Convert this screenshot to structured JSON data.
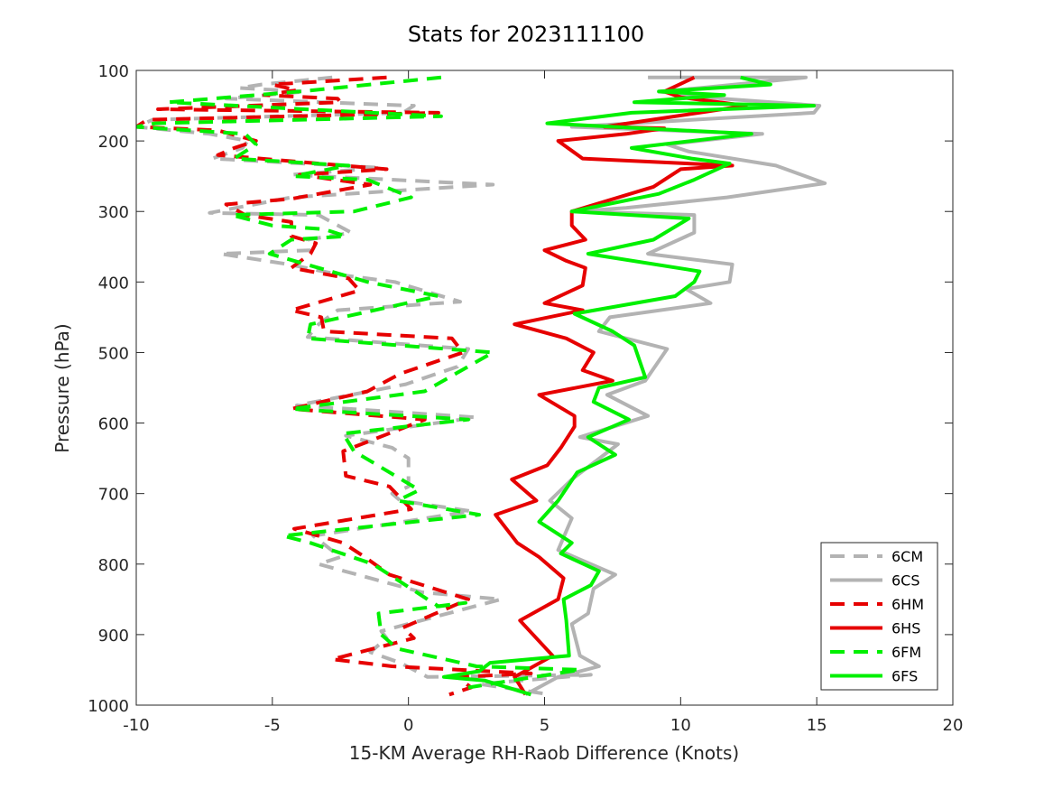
{
  "chart_data": {
    "type": "line",
    "title": "Stats for 2023111100",
    "xlabel": "15-KM Average RH-Raob Difference (Knots)",
    "ylabel": "Pressure (hPa)",
    "xlim": [
      -10,
      20
    ],
    "ylim": [
      100,
      1000
    ],
    "y_reversed": true,
    "x_ticks": [
      -10,
      -5,
      0,
      5,
      10,
      15,
      20
    ],
    "y_ticks": [
      100,
      200,
      300,
      400,
      500,
      600,
      700,
      800,
      900,
      1000
    ],
    "x_tick_labels": [
      "-10",
      "-5",
      "0",
      "5",
      "10",
      "15",
      "20"
    ],
    "y_tick_labels": [
      "100",
      "200",
      "300",
      "400",
      "500",
      "600",
      "700",
      "800",
      "900",
      "1000"
    ],
    "grid": false,
    "legend_position": "bottom-right",
    "series": [
      {
        "name": "6CM",
        "color": "#b3b3b3",
        "dash": "dashed",
        "points": [
          [
            -2.8,
            110
          ],
          [
            -5.4,
            120
          ],
          [
            -6.2,
            125
          ],
          [
            -3.8,
            130
          ],
          [
            -6.7,
            140
          ],
          [
            0.2,
            150
          ],
          [
            -0.2,
            160
          ],
          [
            -9.4,
            170
          ],
          [
            -10,
            180
          ],
          [
            -7.3,
            190
          ],
          [
            -5.9,
            200
          ],
          [
            -6.1,
            210
          ],
          [
            -7.2,
            225
          ],
          [
            -1,
            238
          ],
          [
            -4.3,
            248
          ],
          [
            3.1,
            262
          ],
          [
            -4.3,
            280
          ],
          [
            -7.3,
            302
          ],
          [
            -3.3,
            305
          ],
          [
            -2.1,
            330
          ],
          [
            -3.7,
            340
          ],
          [
            -3.6,
            355
          ],
          [
            -6.9,
            360
          ],
          [
            -4.4,
            375
          ],
          [
            -2.5,
            390
          ],
          [
            -0.5,
            400
          ],
          [
            1.9,
            428
          ],
          [
            -2.6,
            440
          ],
          [
            -3.3,
            460
          ],
          [
            -3.7,
            478
          ],
          [
            2.2,
            495
          ],
          [
            1.8,
            520
          ],
          [
            -0.1,
            545
          ],
          [
            -4.1,
            575
          ],
          [
            2.5,
            592
          ],
          [
            -2.3,
            618
          ],
          [
            -0.6,
            635
          ],
          [
            0,
            650
          ],
          [
            0,
            690
          ],
          [
            -0.6,
            700
          ],
          [
            -0.3,
            710
          ],
          [
            2.3,
            725
          ],
          [
            -3.5,
            760
          ],
          [
            -2.5,
            790
          ],
          [
            -3.3,
            800
          ],
          [
            0.5,
            840
          ],
          [
            3.4,
            850
          ],
          [
            -1,
            895
          ],
          [
            -0.8,
            905
          ],
          [
            -1.4,
            925
          ],
          [
            -0.3,
            940
          ],
          [
            0.7,
            960
          ],
          [
            6.7,
            957
          ],
          [
            2.6,
            970
          ],
          [
            4,
            978
          ],
          [
            5.2,
            985
          ]
        ]
      },
      {
        "name": "6CS",
        "color": "#b3b3b3",
        "dash": "solid",
        "points": [
          [
            8.8,
            110
          ],
          [
            14.6,
            110
          ],
          [
            10.7,
            125
          ],
          [
            9.2,
            130
          ],
          [
            11.5,
            140
          ],
          [
            15.1,
            150
          ],
          [
            14.9,
            160
          ],
          [
            6,
            180
          ],
          [
            13,
            190
          ],
          [
            9.5,
            205
          ],
          [
            10.3,
            215
          ],
          [
            13.5,
            235
          ],
          [
            15.3,
            260
          ],
          [
            11.7,
            280
          ],
          [
            8,
            295
          ],
          [
            6.1,
            300
          ],
          [
            10.5,
            305
          ],
          [
            10.5,
            330
          ],
          [
            8.8,
            360
          ],
          [
            11.9,
            375
          ],
          [
            11.8,
            400
          ],
          [
            10.2,
            410
          ],
          [
            11.1,
            430
          ],
          [
            7.4,
            450
          ],
          [
            7,
            470
          ],
          [
            9.5,
            495
          ],
          [
            8.7,
            540
          ],
          [
            7.3,
            560
          ],
          [
            8.8,
            590
          ],
          [
            6.3,
            620
          ],
          [
            7.7,
            630
          ],
          [
            6,
            680
          ],
          [
            5.2,
            710
          ],
          [
            6,
            735
          ],
          [
            5.5,
            780
          ],
          [
            7.6,
            815
          ],
          [
            6.8,
            835
          ],
          [
            6.6,
            870
          ],
          [
            6,
            885
          ],
          [
            6.3,
            930
          ],
          [
            7,
            945
          ],
          [
            5.5,
            960
          ],
          [
            4.3,
            985
          ]
        ]
      },
      {
        "name": "6HM",
        "color": "#e60000",
        "dash": "dashed",
        "points": [
          [
            -0.8,
            110
          ],
          [
            -5,
            120
          ],
          [
            -4.1,
            128
          ],
          [
            -5.3,
            135
          ],
          [
            -2.6,
            140
          ],
          [
            -2.5,
            145
          ],
          [
            -9.2,
            155
          ],
          [
            1.1,
            160
          ],
          [
            -9.6,
            170
          ],
          [
            -10,
            180
          ],
          [
            -7,
            185
          ],
          [
            -5.6,
            200
          ],
          [
            -6.4,
            210
          ],
          [
            -7,
            220
          ],
          [
            -0.8,
            240
          ],
          [
            -4,
            248
          ],
          [
            -1.4,
            262
          ],
          [
            -4.3,
            282
          ],
          [
            -6.7,
            290
          ],
          [
            -6,
            305
          ],
          [
            -4.3,
            315
          ],
          [
            -4.3,
            335
          ],
          [
            -3.4,
            345
          ],
          [
            -3.6,
            360
          ],
          [
            -4.3,
            380
          ],
          [
            -2.2,
            395
          ],
          [
            -1.8,
            412
          ],
          [
            -4.3,
            440
          ],
          [
            -3.2,
            450
          ],
          [
            -3.1,
            470
          ],
          [
            1.6,
            480
          ],
          [
            2,
            500
          ],
          [
            -0.3,
            530
          ],
          [
            -1.5,
            555
          ],
          [
            -4.3,
            580
          ],
          [
            0.6,
            595
          ],
          [
            -2.4,
            640
          ],
          [
            -2.3,
            675
          ],
          [
            -0.7,
            690
          ],
          [
            0.1,
            722
          ],
          [
            -4.2,
            750
          ],
          [
            -2.4,
            770
          ],
          [
            -1.6,
            790
          ],
          [
            -0.7,
            815
          ],
          [
            2.2,
            850
          ],
          [
            -0.2,
            890
          ],
          [
            0.2,
            905
          ],
          [
            -2.8,
            935
          ],
          [
            -0.6,
            945
          ],
          [
            4.5,
            955
          ],
          [
            1.8,
            960
          ],
          [
            2.3,
            975
          ],
          [
            1.5,
            985
          ]
        ]
      },
      {
        "name": "6HS",
        "color": "#e60000",
        "dash": "solid",
        "points": [
          [
            10.5,
            110
          ],
          [
            9.4,
            130
          ],
          [
            10,
            138
          ],
          [
            12.4,
            150
          ],
          [
            7.2,
            180
          ],
          [
            9.4,
            182
          ],
          [
            8,
            190
          ],
          [
            5.5,
            200
          ],
          [
            6.4,
            225
          ],
          [
            11.9,
            235
          ],
          [
            10,
            240
          ],
          [
            9,
            265
          ],
          [
            6,
            300
          ],
          [
            6,
            320
          ],
          [
            6.5,
            340
          ],
          [
            5,
            355
          ],
          [
            5.8,
            370
          ],
          [
            6.5,
            380
          ],
          [
            6.4,
            405
          ],
          [
            5,
            430
          ],
          [
            6.4,
            440
          ],
          [
            3.9,
            460
          ],
          [
            5.8,
            480
          ],
          [
            6.8,
            500
          ],
          [
            6.4,
            525
          ],
          [
            7.5,
            540
          ],
          [
            4.8,
            560
          ],
          [
            6.1,
            590
          ],
          [
            6.1,
            605
          ],
          [
            5.6,
            635
          ],
          [
            5.1,
            660
          ],
          [
            3.8,
            680
          ],
          [
            4.7,
            710
          ],
          [
            3.2,
            730
          ],
          [
            4,
            770
          ],
          [
            4.8,
            790
          ],
          [
            5.7,
            820
          ],
          [
            5.5,
            850
          ],
          [
            4.1,
            880
          ],
          [
            5.3,
            930
          ],
          [
            3.9,
            960
          ],
          [
            4.3,
            985
          ]
        ]
      },
      {
        "name": "6FM",
        "color": "#00f000",
        "dash": "dashed",
        "points": [
          [
            1.2,
            110
          ],
          [
            -4,
            130
          ],
          [
            -8.8,
            145
          ],
          [
            1.2,
            165
          ],
          [
            -9.3,
            175
          ],
          [
            -10,
            180
          ],
          [
            -6,
            190
          ],
          [
            -5.6,
            205
          ],
          [
            -6.4,
            225
          ],
          [
            -2.2,
            235
          ],
          [
            -3.6,
            245
          ],
          [
            -4.2,
            250
          ],
          [
            -1.5,
            255
          ],
          [
            0.1,
            280
          ],
          [
            -2,
            300
          ],
          [
            -6.5,
            305
          ],
          [
            -5,
            320
          ],
          [
            -3.1,
            325
          ],
          [
            -2.3,
            335
          ],
          [
            -4.3,
            340
          ],
          [
            -5.1,
            360
          ],
          [
            -1.5,
            400
          ],
          [
            1.1,
            420
          ],
          [
            -3.6,
            460
          ],
          [
            -3.7,
            480
          ],
          [
            3.1,
            500
          ],
          [
            0.6,
            555
          ],
          [
            -4.3,
            580
          ],
          [
            2.2,
            595
          ],
          [
            -2.4,
            615
          ],
          [
            -2,
            640
          ],
          [
            0.4,
            695
          ],
          [
            -0.4,
            710
          ],
          [
            2.6,
            730
          ],
          [
            -4.6,
            760
          ],
          [
            -3.6,
            770
          ],
          [
            -1.3,
            800
          ],
          [
            1.1,
            860
          ],
          [
            2.1,
            855
          ],
          [
            -1.1,
            870
          ],
          [
            -1,
            900
          ],
          [
            -0.4,
            920
          ],
          [
            2.5,
            945
          ],
          [
            6.3,
            950
          ],
          [
            3.8,
            965
          ],
          [
            2.2,
            975
          ]
        ]
      },
      {
        "name": "6FS",
        "color": "#00f000",
        "dash": "solid",
        "points": [
          [
            12.2,
            110
          ],
          [
            13.3,
            120
          ],
          [
            9.2,
            130
          ],
          [
            11.6,
            135
          ],
          [
            8.3,
            145
          ],
          [
            14.9,
            150
          ],
          [
            8.2,
            160
          ],
          [
            5.1,
            175
          ],
          [
            12.6,
            190
          ],
          [
            8.2,
            210
          ],
          [
            10.4,
            225
          ],
          [
            11.8,
            232
          ],
          [
            10.5,
            255
          ],
          [
            9.2,
            275
          ],
          [
            6,
            300
          ],
          [
            10.3,
            310
          ],
          [
            9,
            340
          ],
          [
            6.6,
            360
          ],
          [
            10.7,
            385
          ],
          [
            10.5,
            400
          ],
          [
            9.8,
            420
          ],
          [
            6.1,
            445
          ],
          [
            7.5,
            470
          ],
          [
            8.3,
            490
          ],
          [
            8.7,
            535
          ],
          [
            7,
            550
          ],
          [
            6.8,
            570
          ],
          [
            8.1,
            595
          ],
          [
            6.6,
            620
          ],
          [
            7.6,
            645
          ],
          [
            6.2,
            670
          ],
          [
            5.5,
            710
          ],
          [
            4.8,
            740
          ],
          [
            6,
            770
          ],
          [
            5.6,
            785
          ],
          [
            7,
            810
          ],
          [
            6.7,
            830
          ],
          [
            5.7,
            850
          ],
          [
            5.8,
            880
          ],
          [
            5.9,
            930
          ],
          [
            3,
            940
          ],
          [
            2.6,
            952
          ],
          [
            1.3,
            960
          ],
          [
            2.8,
            965
          ],
          [
            4.5,
            985
          ]
        ]
      }
    ]
  }
}
